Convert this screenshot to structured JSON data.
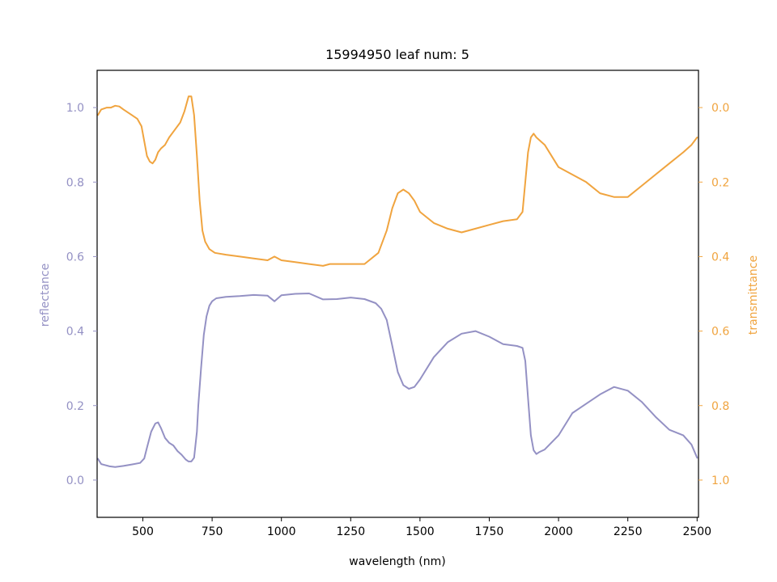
{
  "chart_data": {
    "type": "line",
    "title": "15994950 leaf num: 5",
    "xlabel": "wavelength (nm)",
    "xlim": [
      335,
      2505
    ],
    "xticks": [
      500,
      750,
      1000,
      1250,
      1500,
      1750,
      2000,
      2250,
      2500
    ],
    "grid": false,
    "legend": "none",
    "left_axis": {
      "label": "reflectance",
      "color": "#9491c4",
      "ylim": [
        -0.1,
        1.1
      ],
      "ticks": [
        "0.0",
        "0.2",
        "0.4",
        "0.6",
        "0.8",
        "1.0"
      ],
      "tick_values": [
        0.0,
        0.2,
        0.4,
        0.6,
        0.8,
        1.0
      ]
    },
    "right_axis": {
      "label": "transmittance",
      "color": "#f0a43f",
      "ylim": [
        1.1,
        -0.1
      ],
      "inverted": true,
      "ticks": [
        "0.0",
        "0.2",
        "0.4",
        "0.6",
        "0.8",
        "1.0"
      ],
      "tick_values": [
        0.0,
        0.2,
        0.4,
        0.6,
        0.8,
        1.0
      ]
    },
    "series": [
      {
        "axis": "left",
        "color": "#9491c4",
        "x": [
          338,
          350,
          380,
          400,
          430,
          460,
          490,
          505,
          515,
          530,
          545,
          555,
          565,
          580,
          595,
          610,
          625,
          640,
          655,
          665,
          675,
          685,
          695,
          700,
          710,
          720,
          730,
          740,
          750,
          765,
          800,
          850,
          900,
          950,
          975,
          1000,
          1050,
          1100,
          1150,
          1200,
          1250,
          1300,
          1340,
          1360,
          1380,
          1400,
          1420,
          1440,
          1460,
          1480,
          1500,
          1550,
          1600,
          1650,
          1700,
          1750,
          1800,
          1850,
          1870,
          1880,
          1890,
          1900,
          1910,
          1920,
          1930,
          1950,
          2000,
          2050,
          2100,
          2150,
          2200,
          2250,
          2300,
          2350,
          2400,
          2450,
          2480,
          2500
        ],
        "y": [
          0.057,
          0.043,
          0.037,
          0.035,
          0.038,
          0.042,
          0.046,
          0.058,
          0.087,
          0.13,
          0.152,
          0.155,
          0.14,
          0.113,
          0.1,
          0.093,
          0.078,
          0.068,
          0.055,
          0.05,
          0.05,
          0.06,
          0.13,
          0.2,
          0.3,
          0.39,
          0.44,
          0.468,
          0.48,
          0.488,
          0.492,
          0.494,
          0.497,
          0.495,
          0.48,
          0.496,
          0.5,
          0.501,
          0.485,
          0.486,
          0.49,
          0.486,
          0.475,
          0.46,
          0.43,
          0.36,
          0.29,
          0.255,
          0.245,
          0.25,
          0.27,
          0.33,
          0.37,
          0.393,
          0.4,
          0.385,
          0.365,
          0.36,
          0.355,
          0.32,
          0.22,
          0.12,
          0.08,
          0.07,
          0.075,
          0.082,
          0.12,
          0.18,
          0.205,
          0.23,
          0.25,
          0.24,
          0.21,
          0.17,
          0.135,
          0.12,
          0.095,
          0.06
        ]
      },
      {
        "axis": "right",
        "color": "#f0a43f",
        "x": [
          338,
          350,
          370,
          385,
          400,
          415,
          430,
          460,
          480,
          495,
          505,
          515,
          525,
          535,
          545,
          555,
          565,
          580,
          595,
          615,
          635,
          650,
          665,
          675,
          685,
          695,
          705,
          715,
          725,
          740,
          760,
          800,
          850,
          900,
          950,
          975,
          1000,
          1050,
          1100,
          1150,
          1175,
          1200,
          1250,
          1300,
          1350,
          1380,
          1400,
          1420,
          1440,
          1460,
          1480,
          1500,
          1550,
          1600,
          1650,
          1700,
          1750,
          1800,
          1850,
          1870,
          1880,
          1890,
          1900,
          1910,
          1920,
          1950,
          2000,
          2050,
          2100,
          2150,
          2200,
          2250,
          2300,
          2350,
          2400,
          2450,
          2480,
          2500
        ],
        "y": [
          0.02,
          0.005,
          0.0,
          0.0,
          -0.005,
          -0.003,
          0.005,
          0.02,
          0.03,
          0.05,
          0.09,
          0.13,
          0.145,
          0.15,
          0.14,
          0.12,
          0.11,
          0.1,
          0.08,
          0.06,
          0.04,
          0.01,
          -0.03,
          -0.03,
          0.02,
          0.13,
          0.25,
          0.33,
          0.36,
          0.38,
          0.39,
          0.395,
          0.4,
          0.405,
          0.41,
          0.4,
          0.41,
          0.415,
          0.42,
          0.425,
          0.42,
          0.42,
          0.42,
          0.42,
          0.39,
          0.33,
          0.27,
          0.23,
          0.22,
          0.23,
          0.25,
          0.28,
          0.31,
          0.325,
          0.335,
          0.325,
          0.315,
          0.305,
          0.3,
          0.28,
          0.2,
          0.12,
          0.08,
          0.07,
          0.08,
          0.1,
          0.16,
          0.18,
          0.2,
          0.23,
          0.24,
          0.24,
          0.21,
          0.18,
          0.15,
          0.12,
          0.1,
          0.08
        ]
      }
    ]
  }
}
